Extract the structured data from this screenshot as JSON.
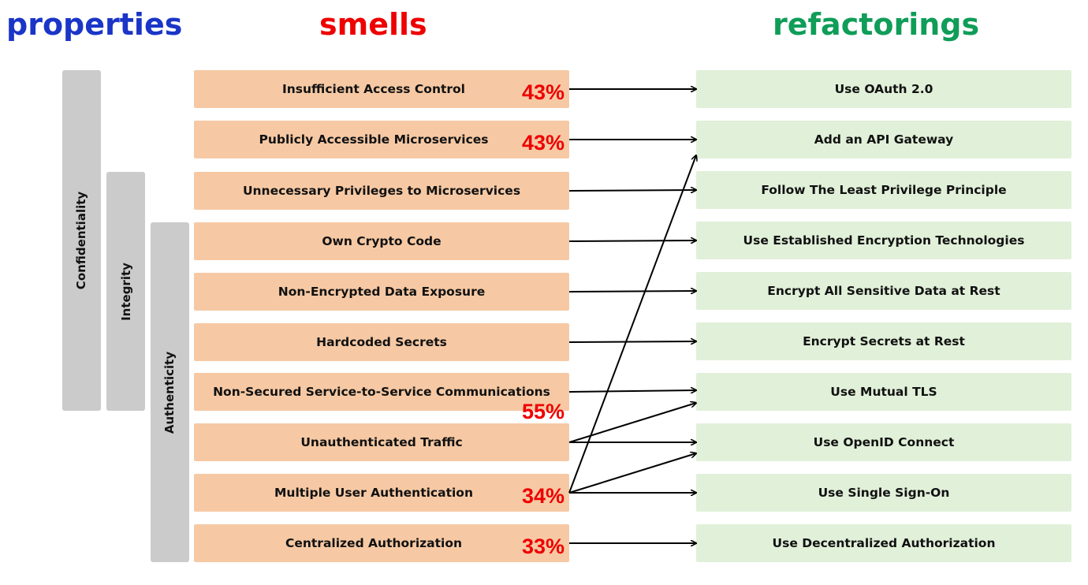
{
  "headers": {
    "properties": "properties",
    "smells": "smells",
    "refactorings": "refactorings"
  },
  "colors": {
    "properties": "#1a35c8",
    "smells": "#ee0000",
    "refactorings": "#0f9d58",
    "smell_box": "#f6c9a4",
    "refactoring_box": "#e1f0d9",
    "property_bar": "#cbcbcb",
    "percentage": "#ee0000",
    "arrow": "#000000"
  },
  "properties": [
    {
      "label": "Confidentiality",
      "first_smell": 0,
      "last_smell": 6
    },
    {
      "label": "Integrity",
      "first_smell": 2,
      "last_smell": 6
    },
    {
      "label": "Authenticity",
      "first_smell": 3,
      "last_smell": 9
    }
  ],
  "smells": [
    {
      "label": "Insufficient Access Control",
      "percentage": "43%"
    },
    {
      "label": "Publicly Accessible Microservices",
      "percentage": "43%"
    },
    {
      "label": "Unnecessary Privileges to Microservices",
      "percentage": ""
    },
    {
      "label": "Own Crypto Code",
      "percentage": ""
    },
    {
      "label": "Non-Encrypted Data Exposure",
      "percentage": ""
    },
    {
      "label": "Hardcoded Secrets",
      "percentage": ""
    },
    {
      "label": "Non-Secured Service-to-Service Communications",
      "percentage": ""
    },
    {
      "label": "Unauthenticated Traffic",
      "percentage": "55%"
    },
    {
      "label": "Multiple User Authentication",
      "percentage": "34%"
    },
    {
      "label": "Centralized Authorization",
      "percentage": "33%"
    }
  ],
  "refactorings": [
    {
      "label": "Use OAuth 2.0"
    },
    {
      "label": "Add an API Gateway"
    },
    {
      "label": "Follow The Least Privilege Principle"
    },
    {
      "label": "Use Established Encryption Technologies"
    },
    {
      "label": "Encrypt All Sensitive Data at Rest"
    },
    {
      "label": "Encrypt Secrets at Rest"
    },
    {
      "label": "Use Mutual TLS"
    },
    {
      "label": "Use OpenID Connect"
    },
    {
      "label": "Use Single Sign-On"
    },
    {
      "label": "Use Decentralized Authorization"
    }
  ],
  "links": [
    {
      "from": 0,
      "to": 0
    },
    {
      "from": 1,
      "to": 1
    },
    {
      "from": 2,
      "to": 2
    },
    {
      "from": 3,
      "to": 3
    },
    {
      "from": 4,
      "to": 4
    },
    {
      "from": 5,
      "to": 5
    },
    {
      "from": 6,
      "to": 6
    },
    {
      "from": 7,
      "to": 6
    },
    {
      "from": 7,
      "to": 7
    },
    {
      "from": 8,
      "to": 1
    },
    {
      "from": 8,
      "to": 7
    },
    {
      "from": 8,
      "to": 8
    },
    {
      "from": 9,
      "to": 9
    }
  ]
}
